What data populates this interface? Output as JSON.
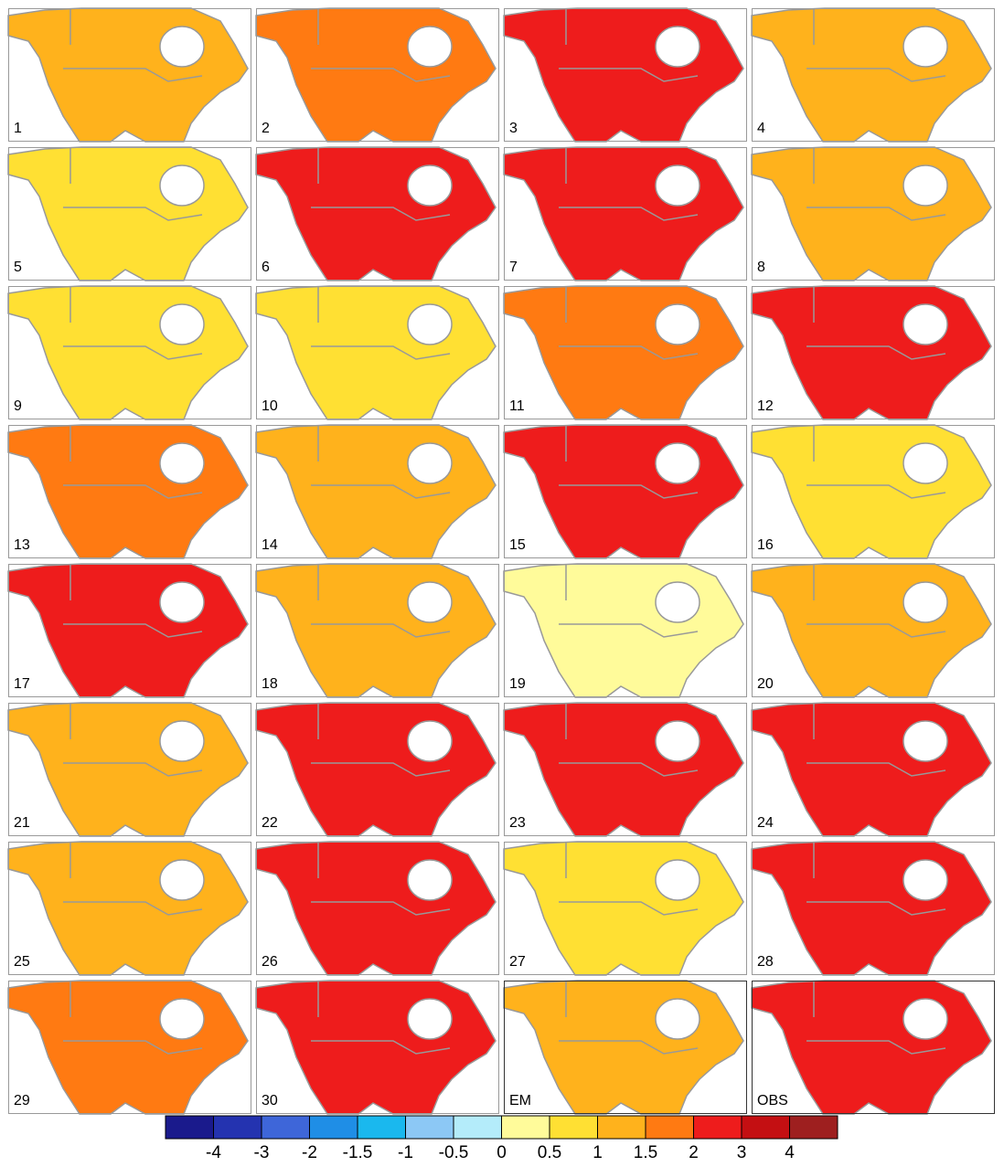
{
  "panels": [
    {
      "label": "1",
      "color": "#ffb21c"
    },
    {
      "label": "2",
      "color": "#ff7a12"
    },
    {
      "label": "3",
      "color": "#ee1c1c"
    },
    {
      "label": "4",
      "color": "#ffb21c"
    },
    {
      "label": "5",
      "color": "#ffe033"
    },
    {
      "label": "6",
      "color": "#ee1c1c"
    },
    {
      "label": "7",
      "color": "#ee1c1c"
    },
    {
      "label": "8",
      "color": "#ffb21c"
    },
    {
      "label": "9",
      "color": "#ffe033"
    },
    {
      "label": "10",
      "color": "#ffe033"
    },
    {
      "label": "11",
      "color": "#ff7a12"
    },
    {
      "label": "12",
      "color": "#ee1c1c"
    },
    {
      "label": "13",
      "color": "#ff7a12"
    },
    {
      "label": "14",
      "color": "#ffb21c"
    },
    {
      "label": "15",
      "color": "#ee1c1c"
    },
    {
      "label": "16",
      "color": "#ffe033"
    },
    {
      "label": "17",
      "color": "#ee1c1c"
    },
    {
      "label": "18",
      "color": "#ffb21c"
    },
    {
      "label": "19",
      "color": "#fffb9a"
    },
    {
      "label": "20",
      "color": "#ffb21c"
    },
    {
      "label": "21",
      "color": "#ffb21c"
    },
    {
      "label": "22",
      "color": "#ee1c1c"
    },
    {
      "label": "23",
      "color": "#ee1c1c"
    },
    {
      "label": "24",
      "color": "#ee1c1c"
    },
    {
      "label": "25",
      "color": "#ffb21c"
    },
    {
      "label": "26",
      "color": "#ee1c1c"
    },
    {
      "label": "27",
      "color": "#ffe033"
    },
    {
      "label": "28",
      "color": "#ee1c1c"
    },
    {
      "label": "29",
      "color": "#ff7a12"
    },
    {
      "label": "30",
      "color": "#ee1c1c"
    },
    {
      "label": "EM",
      "color": "#ffb21c"
    },
    {
      "label": "OBS",
      "color": "#ee1c1c"
    }
  ],
  "colorbar": {
    "colors": [
      "#1a1a8c",
      "#2433b0",
      "#3e66d9",
      "#1f8ee6",
      "#1ab8ee",
      "#8cc8f5",
      "#b4ecfa",
      "#fffb9a",
      "#ffe033",
      "#ffb21c",
      "#ff7a12",
      "#ee1c1c",
      "#c40f12",
      "#9e1f1f"
    ],
    "ticks": [
      -4,
      -3,
      -2,
      -1.5,
      -1,
      -0.5,
      0,
      0.5,
      1,
      1.5,
      2,
      3,
      4
    ]
  }
}
